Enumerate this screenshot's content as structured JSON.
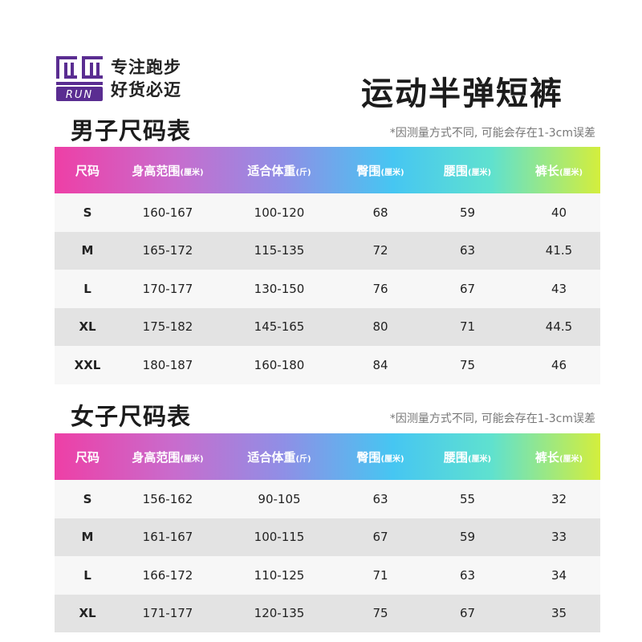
{
  "brand": {
    "logo_text": "RUN",
    "slogan_line1": "专注跑步",
    "slogan_line2": "好货必迈"
  },
  "title": "运动半弹短裤",
  "men": {
    "title": "男子尺码表",
    "note": "*因测量方式不同, 可能会存在1-3cm误差",
    "headers": [
      {
        "label": "尺码",
        "unit": ""
      },
      {
        "label": "身高范围",
        "unit": "(厘米)"
      },
      {
        "label": "适合体重",
        "unit": "(斤)"
      },
      {
        "label": "臀围",
        "unit": "(厘米)"
      },
      {
        "label": "腰围",
        "unit": "(厘米)"
      },
      {
        "label": "裤长",
        "unit": "(厘米)"
      }
    ],
    "rows": [
      [
        "S",
        "160-167",
        "100-120",
        "68",
        "59",
        "40"
      ],
      [
        "M",
        "165-172",
        "115-135",
        "72",
        "63",
        "41.5"
      ],
      [
        "L",
        "170-177",
        "130-150",
        "76",
        "67",
        "43"
      ],
      [
        "XL",
        "175-182",
        "145-165",
        "80",
        "71",
        "44.5"
      ],
      [
        "XXL",
        "180-187",
        "160-180",
        "84",
        "75",
        "46"
      ]
    ]
  },
  "women": {
    "title": "女子尺码表",
    "note": "*因测量方式不同, 可能会存在1-3cm误差",
    "headers": [
      {
        "label": "尺码",
        "unit": ""
      },
      {
        "label": "身高范围",
        "unit": "(厘米)"
      },
      {
        "label": "适合体重",
        "unit": "(斤)"
      },
      {
        "label": "臀围",
        "unit": "(厘米)"
      },
      {
        "label": "腰围",
        "unit": "(厘米)"
      },
      {
        "label": "裤长",
        "unit": "(厘米)"
      }
    ],
    "rows": [
      [
        "S",
        "156-162",
        "90-105",
        "63",
        "55",
        "32"
      ],
      [
        "M",
        "161-167",
        "100-115",
        "67",
        "59",
        "33"
      ],
      [
        "L",
        "166-172",
        "110-125",
        "71",
        "63",
        "34"
      ],
      [
        "XL",
        "171-177",
        "120-135",
        "75",
        "67",
        "35"
      ]
    ]
  },
  "colors": {
    "logo_purple": "#5a2d91",
    "header_gradient": [
      "#ee3fa6",
      "#c86ccd",
      "#8f8fe6",
      "#46c6f2",
      "#5fe1cf",
      "#d4ee3c"
    ],
    "row_light": "#f7f7f7",
    "row_dark": "#e3e3e3"
  }
}
